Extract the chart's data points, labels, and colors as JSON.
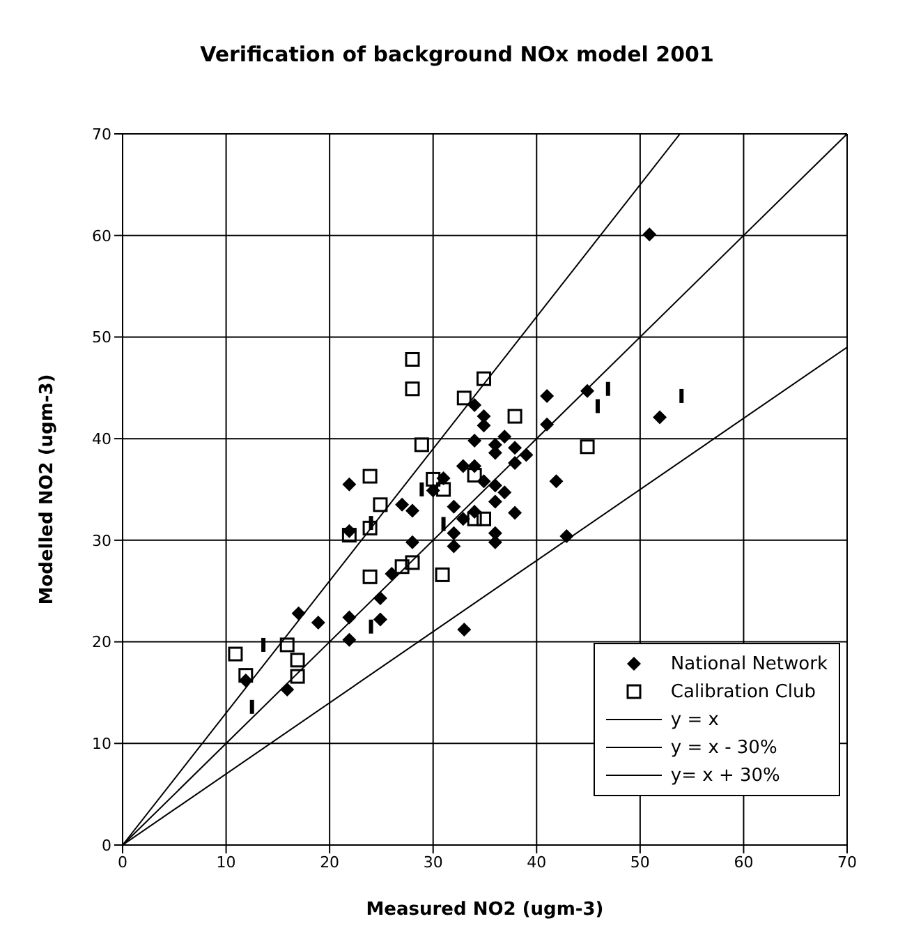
{
  "chart_data": {
    "type": "scatter",
    "title": "Verification of background NOx model 2001",
    "xlabel": "Measured NO2 (ugm-3)",
    "ylabel": "Modelled NO2 (ugm-3)",
    "xlim": [
      0,
      70
    ],
    "xticks": [
      0,
      10,
      20,
      30,
      40,
      50,
      60,
      70
    ],
    "ylim": [
      0,
      70
    ],
    "yticks": [
      0,
      10,
      20,
      30,
      40,
      50,
      60,
      70
    ],
    "grid": true,
    "legend": "bottom right",
    "series": [
      {
        "name": "National Network",
        "color": "#000000",
        "marker": "diamond",
        "x": [
          11.9,
          15.9,
          17,
          18.9,
          21.9,
          21.9,
          24.9,
          24.9,
          26,
          21.9,
          21.9,
          27,
          28,
          28,
          30,
          31,
          32,
          32,
          32,
          32.9,
          32.9,
          33,
          34,
          34,
          34,
          34,
          34.9,
          34.9,
          34.9,
          36,
          36,
          36,
          36,
          36,
          36,
          36.9,
          36.9,
          37.9,
          37.9,
          37.9,
          39,
          41,
          41,
          41.9,
          42.9,
          44.9,
          50.9,
          51.9
        ],
        "values": [
          16.2,
          15.3,
          22.8,
          21.9,
          22.4,
          20.2,
          24.3,
          22.2,
          26.7,
          35.5,
          30.9,
          33.5,
          32.9,
          29.8,
          34.9,
          36.1,
          33.3,
          30.7,
          29.4,
          37.3,
          32.1,
          21.2,
          43.3,
          39.8,
          37.3,
          32.8,
          42.2,
          41.3,
          35.8,
          39.4,
          38.6,
          35.4,
          33.8,
          30.7,
          29.8,
          40.2,
          34.7,
          39.1,
          37.6,
          32.7,
          38.4,
          44.2,
          41.4,
          35.8,
          30.4,
          44.7,
          60.1,
          42.1
        ]
      },
      {
        "name": "Calibration Club",
        "color": "#000000",
        "marker": "square",
        "x": [
          10.9,
          11.9,
          15.9,
          16.9,
          16.9,
          21.9,
          23.9,
          23.9,
          23.9,
          24.9,
          27,
          28,
          28,
          28,
          28.9,
          30,
          31,
          30.9,
          33,
          34,
          34,
          34.9,
          34.9,
          37.9,
          44.9
        ],
        "values": [
          18.8,
          16.7,
          19.7,
          18.2,
          16.6,
          30.5,
          36.3,
          31.2,
          26.4,
          33.5,
          27.4,
          27.8,
          47.8,
          44.9,
          39.4,
          36,
          35,
          26.6,
          44,
          36.4,
          32.1,
          32.1,
          45.9,
          42.2,
          39.2
        ]
      },
      {
        "color": "#000000",
        "x": [
          12.5,
          13.6,
          24,
          24,
          28.9,
          31,
          45.9,
          46.9,
          54
        ],
        "values": [
          13.6,
          19.7,
          31.7,
          21.5,
          35,
          31.6,
          43.2,
          44.9,
          44.2
        ]
      },
      {
        "name": "y = x",
        "type": "line",
        "color": "#000000",
        "x": [
          0,
          70
        ],
        "values": [
          0,
          70
        ]
      },
      {
        "name": "y = x - 30%",
        "type": "line",
        "color": "#000000",
        "x": [
          0,
          70
        ],
        "values": [
          0,
          49
        ]
      },
      {
        "name": "y= x + 30%",
        "type": "line",
        "color": "#000000",
        "x": [
          0,
          53.85
        ],
        "values": [
          0,
          70
        ]
      }
    ]
  }
}
